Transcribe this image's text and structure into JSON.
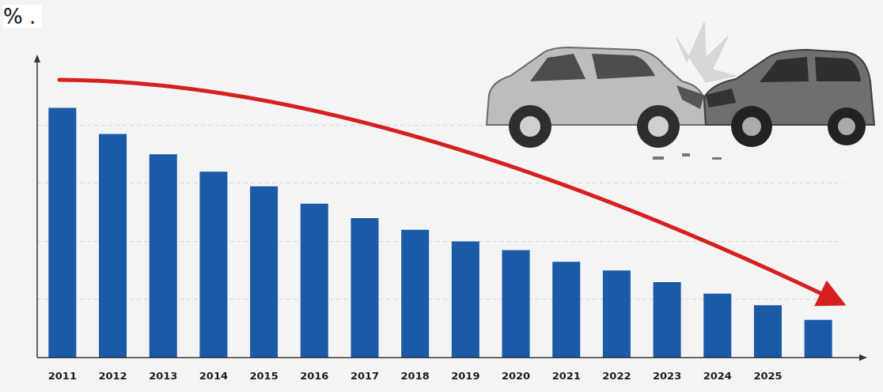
{
  "chart_data": {
    "type": "bar",
    "title": "% .",
    "categories": [
      "2011",
      "2012",
      "2013",
      "2014",
      "2015",
      "2016",
      "2017",
      "2018",
      "2019",
      "2020",
      "2021",
      "2022",
      "2023",
      "2024",
      "2025",
      null
    ],
    "values": [
      86,
      77,
      70,
      64,
      59,
      53,
      48,
      44,
      40,
      37,
      33,
      30,
      26,
      22,
      18,
      13
    ],
    "color": "#1a5aa6",
    "ylim": [
      0,
      100
    ],
    "yticks": [
      0,
      20,
      40,
      60,
      80
    ],
    "grid": true,
    "tick_labels": "x"
  }
}
